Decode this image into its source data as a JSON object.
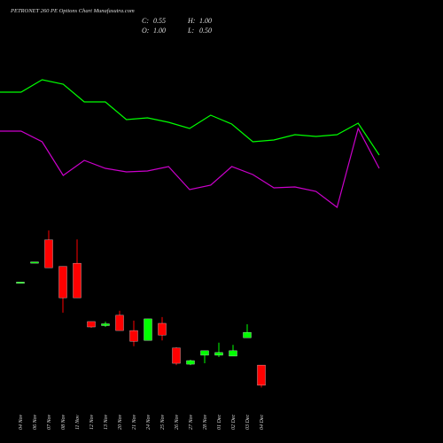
{
  "chart_data": [
    {
      "type": "line",
      "title": "PETRONET 260 PE Options Chart Munafasutra.com",
      "ylim": [
        0,
        250
      ],
      "series": [
        {
          "color": "#00ff00",
          "values": [
            146,
            146,
            160,
            155,
            135,
            135,
            115,
            117,
            112,
            105,
            120,
            110,
            90,
            92,
            98,
            96,
            98,
            111,
            75
          ]
        },
        {
          "color": "#cc00cc",
          "values": [
            102,
            102,
            90,
            52,
            69,
            60,
            56,
            57,
            62,
            36,
            41,
            62,
            53,
            38,
            39,
            34,
            16,
            105,
            60
          ]
        }
      ]
    },
    {
      "type": "candlestick",
      "summary": [
        {
          "label": "C:",
          "value": "0.55"
        },
        {
          "label": "H:",
          "value": "1.00"
        },
        {
          "label": "O:",
          "value": "1.00"
        },
        {
          "label": "L:",
          "value": "0.50"
        }
      ],
      "categories": [
        "04 Nov",
        "06 Nov",
        "07 Nov",
        "08 Nov",
        "11 Nov",
        "12 Nov",
        "13 Nov",
        "20 Nov",
        "21 Nov",
        "24 Nov",
        "25 Nov",
        "26 Nov",
        "27 Nov",
        "28 Nov",
        "01 Dec",
        "02 Dec",
        "03 Dec",
        "04 Dec"
      ],
      "open": [
        2.85,
        3.3,
        3.79,
        3.2,
        3.27,
        1.97,
        1.88,
        2.11,
        1.77,
        1.55,
        1.93,
        1.38,
        1.02,
        1.22,
        1.22,
        1.2,
        1.61,
        1.0
      ],
      "high": [
        2.85,
        3.3,
        4.0,
        3.2,
        3.8,
        1.97,
        1.97,
        2.21,
        1.99,
        2.03,
        2.07,
        1.4,
        1.12,
        1.32,
        1.5,
        1.45,
        1.91,
        1.0
      ],
      "low": [
        2.85,
        3.3,
        3.17,
        2.17,
        2.5,
        1.83,
        1.85,
        1.77,
        1.42,
        1.55,
        1.55,
        1.0,
        1.0,
        1.04,
        1.18,
        1.2,
        1.61,
        0.5
      ],
      "close": [
        2.85,
        3.3,
        3.17,
        2.5,
        2.5,
        1.85,
        1.92,
        1.77,
        1.53,
        2.03,
        1.67,
        1.04,
        1.1,
        1.32,
        1.28,
        1.32,
        1.73,
        0.55
      ],
      "ylim": [
        0.35,
        4.2
      ],
      "up_color": "#00ff00",
      "down_color": "#ff0000"
    }
  ]
}
